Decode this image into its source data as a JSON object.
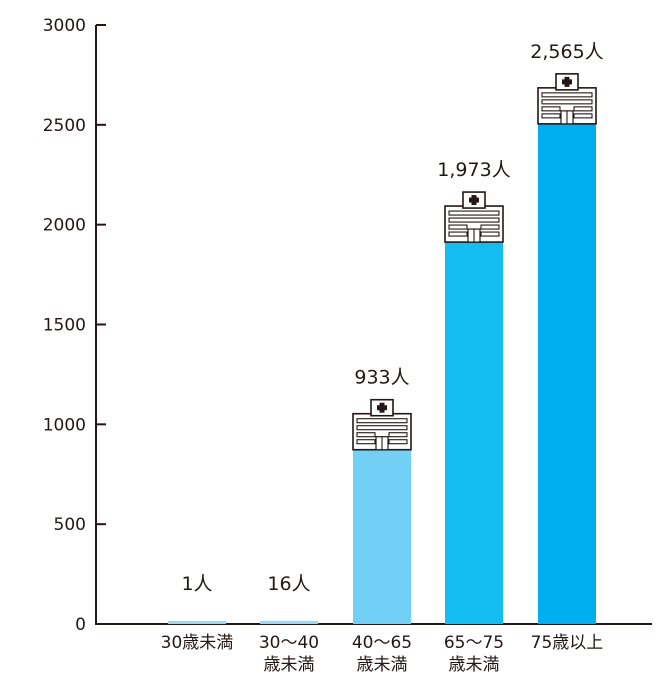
{
  "chart_data": {
    "type": "bar",
    "title": "",
    "xlabel": "",
    "ylabel": "",
    "ylim": [
      0,
      3000
    ],
    "yticks": [
      0,
      500,
      1000,
      1500,
      2000,
      2500,
      3000
    ],
    "grid": false,
    "legend": "none",
    "categories": [
      [
        "30歳未満"
      ],
      [
        "30～40",
        "歳未満"
      ],
      [
        "40～65",
        "歳未満"
      ],
      [
        "65～75",
        "歳未満"
      ],
      [
        "75歳以上"
      ]
    ],
    "values": [
      1,
      16,
      933,
      1973,
      2565
    ],
    "value_labels": [
      "1人",
      "16人",
      "933人",
      "1,973人",
      "2,565人"
    ],
    "bar_colors": [
      "#9ad8f5",
      "#9ad8f5",
      "#72cff5",
      "#13bdf2",
      "#00aef0"
    ],
    "building_icon_on": [
      false,
      false,
      true,
      true,
      true
    ]
  }
}
